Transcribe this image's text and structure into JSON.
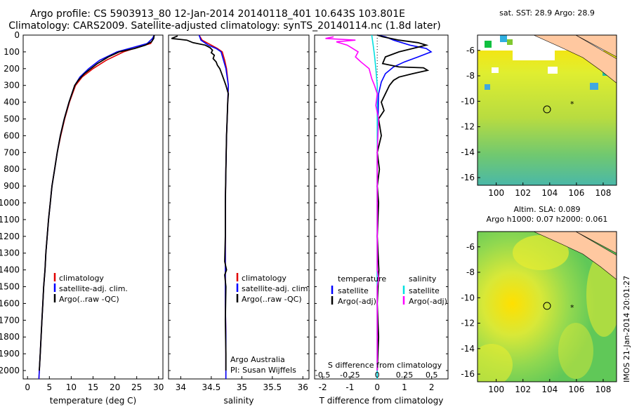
{
  "title_line1": "Argo profile: CS 5903913_80 12-Jan-2014 20140118_401 10.643S 103.801E",
  "title_line2": "Climatology: CARS2009. Satellite-adjusted climatology: synTS_20140114.nc (1.8d later)",
  "colors": {
    "climatology": "#e00000",
    "satellite": "#0000ff",
    "argo": "#000000",
    "sat_sal": "#00e0e0",
    "argo_sal": "#ff00ff",
    "land": "#ffc8a0"
  },
  "chart_data": [
    {
      "type": "line",
      "id": "temperature",
      "xlabel": "temperature (deg C)",
      "ylabel": "",
      "xlim": [
        -1,
        31
      ],
      "ylim": [
        2050,
        0
      ],
      "xticks": [
        0,
        5,
        10,
        15,
        20,
        25,
        30
      ],
      "yticks": [
        0,
        100,
        200,
        300,
        400,
        500,
        600,
        700,
        800,
        900,
        1000,
        1100,
        1200,
        1300,
        1400,
        1500,
        1600,
        1700,
        1800,
        1900,
        2000
      ],
      "legend": [
        "climatology",
        "satellite-adj. clim.",
        "Argo(..raw -QC)"
      ],
      "series": [
        {
          "name": "climatology",
          "color": "#e00000",
          "points": [
            [
              29,
              0
            ],
            [
              28.8,
              20
            ],
            [
              28.2,
              50
            ],
            [
              25,
              75
            ],
            [
              22,
              100
            ],
            [
              18,
              150
            ],
            [
              15,
              200
            ],
            [
              12.5,
              250
            ],
            [
              11,
              300
            ],
            [
              9.6,
              400
            ],
            [
              8.5,
              500
            ],
            [
              7.6,
              600
            ],
            [
              6.8,
              700
            ],
            [
              6.2,
              800
            ],
            [
              5.6,
              900
            ],
            [
              5.2,
              1000
            ],
            [
              4.8,
              1100
            ],
            [
              4.5,
              1200
            ],
            [
              4.2,
              1300
            ],
            [
              4,
              1400
            ],
            [
              3.7,
              1500
            ],
            [
              3.5,
              1600
            ],
            [
              3.3,
              1700
            ],
            [
              3.1,
              1800
            ],
            [
              2.9,
              1900
            ],
            [
              2.7,
              2000
            ],
            [
              2.6,
              2050
            ]
          ]
        },
        {
          "name": "satellite-adj. clim.",
          "color": "#0000ff",
          "points": [
            [
              29,
              0
            ],
            [
              28.6,
              20
            ],
            [
              27.4,
              50
            ],
            [
              24,
              75
            ],
            [
              20.5,
              100
            ],
            [
              16.5,
              150
            ],
            [
              14,
              200
            ],
            [
              12,
              250
            ],
            [
              10.8,
              300
            ],
            [
              9.5,
              400
            ],
            [
              8.4,
              500
            ],
            [
              7.5,
              600
            ],
            [
              6.8,
              700
            ],
            [
              6.2,
              800
            ],
            [
              5.6,
              900
            ],
            [
              5.2,
              1000
            ],
            [
              4.8,
              1100
            ],
            [
              4.5,
              1200
            ],
            [
              4.2,
              1300
            ],
            [
              4,
              1400
            ],
            [
              3.7,
              1500
            ],
            [
              3.5,
              1600
            ],
            [
              3.3,
              1700
            ],
            [
              3.1,
              1800
            ],
            [
              2.9,
              1900
            ],
            [
              2.7,
              2000
            ],
            [
              2.6,
              2050
            ]
          ]
        },
        {
          "name": "Argo(..raw -QC)",
          "color": "#000000",
          "points": [
            [
              29,
              0
            ],
            [
              28.9,
              20
            ],
            [
              28.4,
              40
            ],
            [
              27,
              60
            ],
            [
              24.5,
              80
            ],
            [
              21,
              100
            ],
            [
              18.5,
              130
            ],
            [
              16,
              170
            ],
            [
              14.5,
              200
            ],
            [
              13,
              230
            ],
            [
              11.6,
              270
            ],
            [
              10.8,
              300
            ],
            [
              9.5,
              400
            ],
            [
              8.4,
              500
            ],
            [
              7.5,
              600
            ],
            [
              6.8,
              700
            ],
            [
              6.2,
              800
            ],
            [
              5.6,
              900
            ],
            [
              5.2,
              1000
            ],
            [
              4.8,
              1100
            ],
            [
              4.5,
              1200
            ],
            [
              4.2,
              1300
            ],
            [
              4,
              1400
            ],
            [
              3.7,
              1500
            ],
            [
              3.5,
              1600
            ],
            [
              3.3,
              1700
            ],
            [
              3.1,
              1800
            ],
            [
              2.9,
              1900
            ],
            [
              2.7,
              2000
            ]
          ]
        }
      ]
    },
    {
      "type": "line",
      "id": "salinity",
      "xlabel": "salinity",
      "ylabel": "",
      "xlim": [
        33.8,
        36.1
      ],
      "ylim": [
        2050,
        0
      ],
      "xticks": [
        34,
        34.5,
        35,
        35.5,
        36
      ],
      "legend": [
        "climatology",
        "satellite-adj. clim.",
        "Argo(..raw -QC)"
      ],
      "annotation": [
        "Argo Australia",
        "PI: Susan Wijffels"
      ],
      "series": [
        {
          "name": "climatology",
          "color": "#e00000",
          "points": [
            [
              34.3,
              0
            ],
            [
              34.35,
              30
            ],
            [
              34.5,
              60
            ],
            [
              34.6,
              80
            ],
            [
              34.68,
              100
            ],
            [
              34.72,
              150
            ],
            [
              34.75,
              200
            ],
            [
              34.78,
              300
            ],
            [
              34.77,
              400
            ],
            [
              34.76,
              500
            ],
            [
              34.75,
              600
            ],
            [
              34.74,
              800
            ],
            [
              34.73,
              1000
            ],
            [
              34.73,
              1200
            ],
            [
              34.73,
              1400
            ],
            [
              34.73,
              1600
            ],
            [
              34.74,
              1800
            ],
            [
              34.74,
              2000
            ],
            [
              34.74,
              2050
            ]
          ]
        },
        {
          "name": "satellite-adj. clim.",
          "color": "#0000ff",
          "points": [
            [
              34.3,
              0
            ],
            [
              34.33,
              30
            ],
            [
              34.45,
              60
            ],
            [
              34.58,
              80
            ],
            [
              34.66,
              100
            ],
            [
              34.7,
              150
            ],
            [
              34.74,
              200
            ],
            [
              34.78,
              300
            ],
            [
              34.77,
              400
            ],
            [
              34.76,
              500
            ],
            [
              34.75,
              600
            ],
            [
              34.74,
              800
            ],
            [
              34.73,
              1000
            ],
            [
              34.73,
              1200
            ],
            [
              34.73,
              1400
            ],
            [
              34.73,
              1600
            ],
            [
              34.74,
              1800
            ],
            [
              34.74,
              2000
            ],
            [
              34.74,
              2050
            ]
          ]
        },
        {
          "name": "Argo(..raw -QC)",
          "color": "#000000",
          "points": [
            [
              33.95,
              5
            ],
            [
              33.85,
              20
            ],
            [
              34.1,
              30
            ],
            [
              34.2,
              45
            ],
            [
              34.4,
              60
            ],
            [
              34.48,
              75
            ],
            [
              34.52,
              90
            ],
            [
              34.5,
              105
            ],
            [
              34.55,
              120
            ],
            [
              34.53,
              140
            ],
            [
              34.58,
              160
            ],
            [
              34.6,
              180
            ],
            [
              34.64,
              200
            ],
            [
              34.66,
              220
            ],
            [
              34.7,
              260
            ],
            [
              34.74,
              300
            ],
            [
              34.78,
              350
            ],
            [
              34.77,
              400
            ],
            [
              34.76,
              500
            ],
            [
              34.75,
              600
            ],
            [
              34.74,
              800
            ],
            [
              34.73,
              1000
            ],
            [
              34.73,
              1200
            ],
            [
              34.72,
              1350
            ],
            [
              34.75,
              1400
            ],
            [
              34.72,
              1430
            ],
            [
              34.74,
              1500
            ],
            [
              34.73,
              1700
            ],
            [
              34.74,
              1900
            ],
            [
              34.74,
              2000
            ]
          ]
        }
      ]
    },
    {
      "type": "line",
      "id": "differences",
      "xlabel": "T difference from climatology",
      "xlabel_top": "S difference from climatology",
      "xlim": [
        -2.3,
        2.6
      ],
      "ylim": [
        2050,
        0
      ],
      "xticks": [
        -2,
        -1,
        0,
        1,
        2
      ],
      "xticks_top": [
        "-0.5",
        "-0.25",
        "0",
        "0.25",
        "0.5"
      ],
      "legend_t": {
        "title": "temperature",
        "items": [
          "satellite",
          "Argo(-adj)"
        ]
      },
      "legend_s": {
        "title": "salinity",
        "items": [
          "satellite",
          "Argo(-adj)"
        ]
      },
      "series": [
        {
          "name": "T satellite",
          "color": "#0000ff",
          "points": [
            [
              0,
              0
            ],
            [
              0.3,
              10
            ],
            [
              0.6,
              30
            ],
            [
              1.2,
              60
            ],
            [
              1.8,
              80
            ],
            [
              1.98,
              100
            ],
            [
              1.5,
              130
            ],
            [
              1.0,
              160
            ],
            [
              0.6,
              190
            ],
            [
              0.3,
              230
            ],
            [
              0.15,
              280
            ],
            [
              0.05,
              350
            ],
            [
              0.03,
              500
            ],
            [
              0,
              700
            ],
            [
              0,
              2050
            ]
          ]
        },
        {
          "name": "T Argo(-adj)",
          "color": "#000000",
          "points": [
            [
              0,
              0
            ],
            [
              0.2,
              10
            ],
            [
              0.8,
              30
            ],
            [
              1.5,
              45
            ],
            [
              1.8,
              60
            ],
            [
              1.3,
              80
            ],
            [
              0.8,
              100
            ],
            [
              0.3,
              130
            ],
            [
              0.2,
              170
            ],
            [
              0.8,
              190
            ],
            [
              1.7,
              195
            ],
            [
              1.85,
              210
            ],
            [
              1.3,
              230
            ],
            [
              0.8,
              250
            ],
            [
              0.6,
              270
            ],
            [
              0.45,
              300
            ],
            [
              0.3,
              350
            ],
            [
              0.15,
              400
            ],
            [
              0.25,
              450
            ],
            [
              0.05,
              500
            ],
            [
              0.15,
              600
            ],
            [
              0.0,
              700
            ],
            [
              0.08,
              800
            ],
            [
              0.0,
              900
            ],
            [
              0.05,
              1000
            ],
            [
              0.0,
              1200
            ],
            [
              0.06,
              1400
            ],
            [
              0.0,
              1600
            ],
            [
              0.05,
              1800
            ],
            [
              0.0,
              2000
            ]
          ]
        },
        {
          "name": "S satellite",
          "color": "#00e0e0",
          "points": [
            [
              -0.2,
              0
            ],
            [
              -0.15,
              60
            ],
            [
              -0.1,
              120
            ],
            [
              -0.05,
              200
            ],
            [
              0,
              300
            ],
            [
              0,
              2050
            ]
          ]
        },
        {
          "name": "S Argo(-adj)",
          "color": "#ff00ff",
          "points": [
            [
              -1.6,
              10
            ],
            [
              -1.9,
              20
            ],
            [
              -0.8,
              30
            ],
            [
              -1.5,
              40
            ],
            [
              -1.1,
              60
            ],
            [
              -0.9,
              80
            ],
            [
              -0.7,
              100
            ],
            [
              -0.8,
              130
            ],
            [
              -0.6,
              160
            ],
            [
              -0.3,
              200
            ],
            [
              -0.2,
              260
            ],
            [
              -0.1,
              300
            ],
            [
              0,
              350
            ],
            [
              -0.05,
              420
            ],
            [
              0.05,
              500
            ],
            [
              0,
              700
            ],
            [
              0,
              1400
            ],
            [
              0.05,
              1450
            ],
            [
              0,
              1500
            ],
            [
              0,
              2000
            ]
          ]
        }
      ]
    },
    {
      "type": "heatmap",
      "id": "sst_map",
      "title": "sat. SST: 28.9 Argo: 28.9",
      "xlim": [
        98.6,
        109
      ],
      "ylim": [
        -16.6,
        -4.8
      ],
      "xticks": [
        100,
        102,
        104,
        106,
        108
      ],
      "yticks": [
        -6,
        -8,
        -10,
        -12,
        -14,
        -16
      ],
      "argo_position": [
        103.8,
        -10.64
      ]
    },
    {
      "type": "heatmap",
      "id": "sla_map",
      "title_line1": "Altim. SLA: 0.089",
      "title_line2": "Argo h1000: 0.07 h2000: 0.061",
      "xlim": [
        98.6,
        109
      ],
      "ylim": [
        -16.6,
        -4.8
      ],
      "xticks": [
        100,
        102,
        104,
        106,
        108
      ],
      "yticks": [
        -6,
        -8,
        -10,
        -12,
        -14,
        -16
      ],
      "argo_position": [
        103.8,
        -10.64
      ]
    }
  ],
  "credit": "IMOS 21-Jan-2014 20:01:27"
}
